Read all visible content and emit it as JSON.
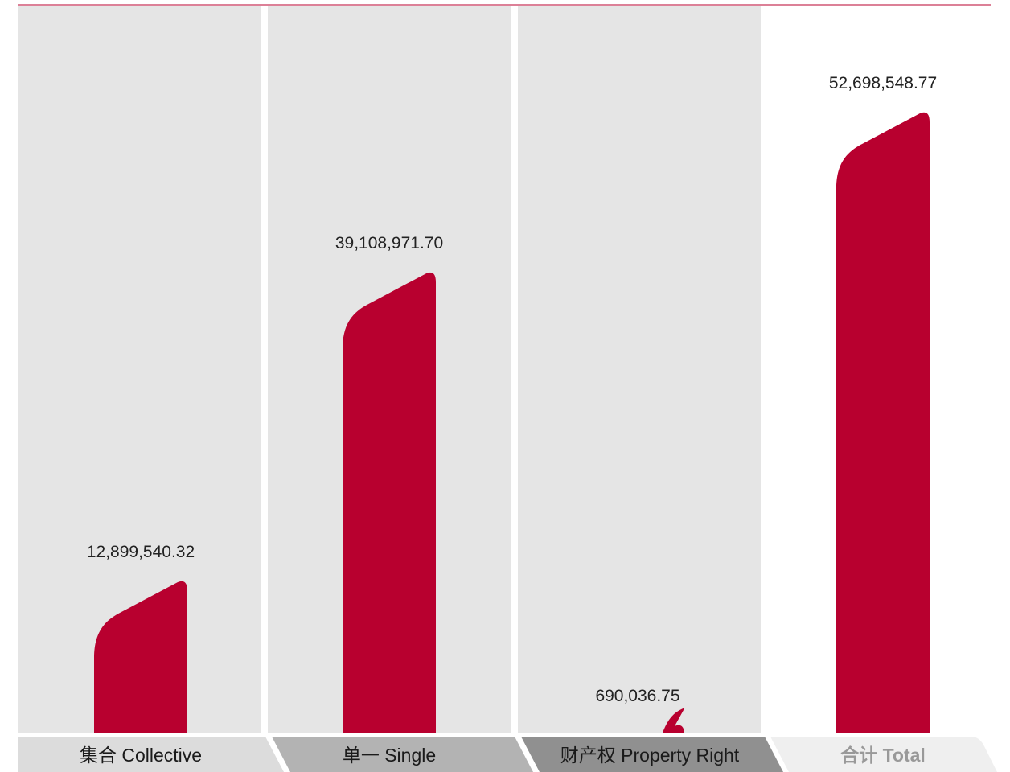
{
  "chart_data": {
    "type": "bar",
    "title": "",
    "xlabel": "",
    "ylabel": "",
    "categories": [
      "集合 Collective",
      "单一 Single",
      "财产权 Property Right",
      "合计 Total"
    ],
    "values": [
      12899540.32,
      39108971.7,
      690036.75,
      52698548.77
    ],
    "value_labels": [
      "12,899,540.32",
      "39,108,971.70",
      "690,036.75",
      "52,698,548.77"
    ],
    "grid": false,
    "legend": "none"
  },
  "colors": {
    "bar": "#b8002f",
    "panel_background": "#e5e5e5",
    "top_rule": "#b8002f",
    "tab_collective": "#dcdcdc",
    "tab_single": "#b3b3b3",
    "tab_property": "#909090",
    "tab_total": "#efefef"
  }
}
